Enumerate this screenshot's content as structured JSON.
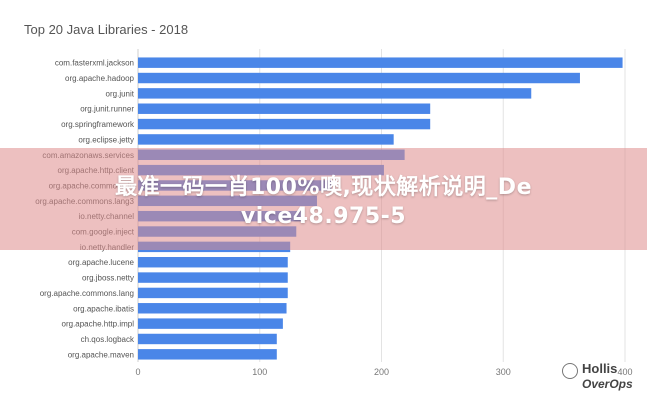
{
  "chart_data": {
    "type": "bar",
    "orientation": "horizontal",
    "title": "Top 20 Java Libraries - 2018",
    "categories": [
      "com.fasterxml.jackson",
      "org.apache.hadoop",
      "org.junit",
      "org.junit.runner",
      "org.springframework",
      "org.eclipse.jetty",
      "com.amazonaws.services",
      "org.apache.http.client",
      "org.apache.commons.io",
      "org.apache.commons.lang3",
      "io.netty.channel",
      "com.google.inject",
      "io.netty.handler",
      "org.apache.lucene",
      "org.jboss.netty",
      "org.apache.commons.lang",
      "org.apache.ibatis",
      "org.apache.http.impl",
      "ch.qos.logback",
      "org.apache.maven"
    ],
    "values": [
      398,
      363,
      323,
      240,
      240,
      210,
      219,
      202,
      159,
      147,
      134,
      130,
      125,
      123,
      123,
      123,
      122,
      119,
      114,
      114
    ],
    "xlim": [
      0,
      400
    ],
    "xticks": [
      0,
      100,
      200,
      300,
      400
    ],
    "grid": true,
    "bar_color": "#4a86e8"
  },
  "overlay": {
    "line1": "最准一码一肖100%噢,现状解析说明_De",
    "line2": "vice48.975-5"
  },
  "watermark": {
    "name": "Hollis",
    "sub": "OverOps"
  }
}
